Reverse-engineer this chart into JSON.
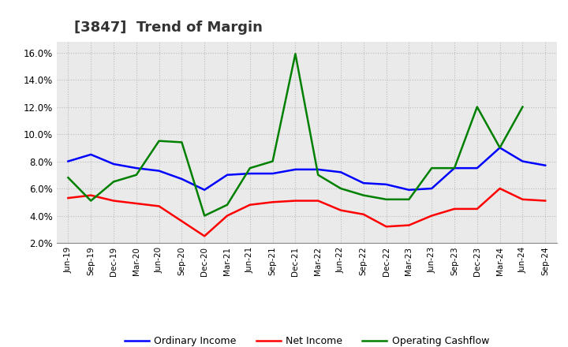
{
  "title": "[3847]  Trend of Margin",
  "labels": [
    "Jun-19",
    "Sep-19",
    "Dec-19",
    "Mar-20",
    "Jun-20",
    "Sep-20",
    "Dec-20",
    "Mar-21",
    "Jun-21",
    "Sep-21",
    "Dec-21",
    "Mar-22",
    "Jun-22",
    "Sep-22",
    "Dec-22",
    "Mar-23",
    "Jun-23",
    "Sep-23",
    "Dec-23",
    "Mar-24",
    "Jun-24",
    "Sep-24"
  ],
  "ordinary_income": [
    8.0,
    8.5,
    7.8,
    7.5,
    7.3,
    6.7,
    5.9,
    7.0,
    7.1,
    7.1,
    7.4,
    7.4,
    7.2,
    6.4,
    6.3,
    5.9,
    6.0,
    7.5,
    7.5,
    9.0,
    8.0,
    7.7
  ],
  "net_income": [
    5.3,
    5.5,
    5.1,
    4.9,
    4.7,
    3.6,
    2.5,
    4.0,
    4.8,
    5.0,
    5.1,
    5.1,
    4.4,
    4.1,
    3.2,
    3.3,
    4.0,
    4.5,
    4.5,
    6.0,
    5.2,
    5.1
  ],
  "operating_cashflow": [
    6.8,
    5.1,
    6.5,
    7.0,
    9.5,
    9.4,
    4.0,
    4.8,
    7.5,
    8.0,
    15.9,
    7.0,
    6.0,
    5.5,
    5.2,
    5.2,
    7.5,
    7.5,
    12.0,
    9.0,
    12.0,
    null
  ],
  "ordinary_income_color": "#0000FF",
  "net_income_color": "#FF0000",
  "operating_cashflow_color": "#008000",
  "ylim_min": 2.0,
  "ylim_max": 16.8,
  "yticks": [
    2.0,
    4.0,
    6.0,
    8.0,
    10.0,
    12.0,
    14.0,
    16.0
  ],
  "background_color": "#FFFFFF",
  "plot_bg_color": "#EAEAEA",
  "grid_color": "#BBBBBB",
  "title_fontsize": 13,
  "title_color": "#333333",
  "legend_labels": [
    "Ordinary Income",
    "Net Income",
    "Operating Cashflow"
  ]
}
